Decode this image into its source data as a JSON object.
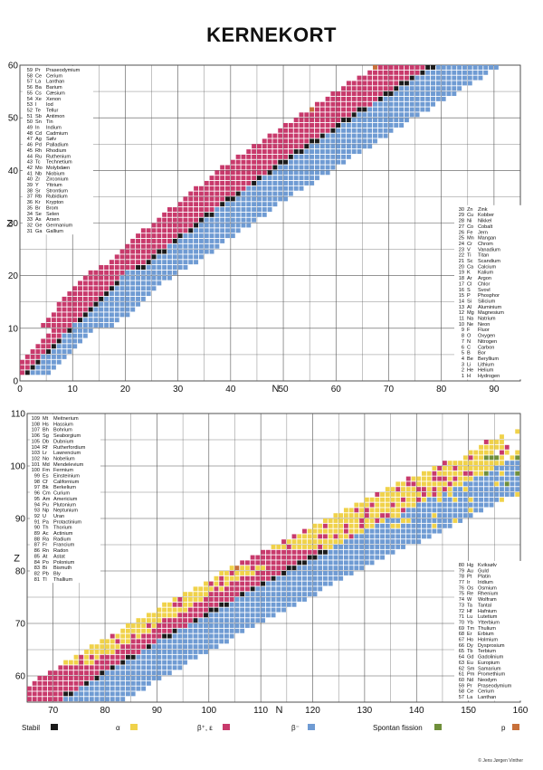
{
  "title": "KERNEKORT",
  "copyright": "© Jens Jørgen Vinther",
  "colors": {
    "stable": "#1a1a1a",
    "alpha": "#f0d24a",
    "beta_plus": "#c83a6c",
    "beta_minus": "#6f9bd3",
    "fission": "#6f8f3a",
    "proton": "#c8703a",
    "grid": "#555555"
  },
  "legend": [
    {
      "key": "stable",
      "label": "Stabil"
    },
    {
      "key": "alpha",
      "label": "α"
    },
    {
      "key": "beta_plus",
      "label": "β⁺, ε"
    },
    {
      "key": "beta_minus",
      "label": "β⁻"
    },
    {
      "key": "fission",
      "label": "Spontan fission"
    },
    {
      "key": "proton",
      "label": "p"
    }
  ],
  "chart_data": [
    {
      "type": "heatmap",
      "title": "KERNEKORT",
      "xlabel": "N",
      "ylabel": "Z",
      "xlim": [
        0,
        95
      ],
      "ylim": [
        0,
        60
      ],
      "x_ticks": [
        0,
        10,
        20,
        30,
        40,
        50,
        60,
        70,
        80,
        90
      ],
      "y_ticks": [
        0,
        10,
        20,
        30,
        40,
        50,
        60
      ],
      "grid": true,
      "legend_placement": "bottom",
      "element_lists": [
        {
          "placement": "top-left",
          "items": [
            {
              "z": "59",
              "sym": "Pr",
              "name": "Praseodymium"
            },
            {
              "z": "58",
              "sym": "Ce",
              "name": "Cerium"
            },
            {
              "z": "57",
              "sym": "La",
              "name": "Lanthan"
            },
            {
              "z": "56",
              "sym": "Ba",
              "name": "Barium"
            },
            {
              "z": "55",
              "sym": "Cs",
              "name": "Cæsium"
            },
            {
              "z": "54",
              "sym": "Xe",
              "name": "Xenon"
            },
            {
              "z": "53",
              "sym": "I",
              "name": "Iod"
            },
            {
              "z": "52",
              "sym": "Te",
              "name": "Tellur"
            },
            {
              "z": "51",
              "sym": "Sb",
              "name": "Antimon"
            },
            {
              "z": "50",
              "sym": "Sn",
              "name": "Tin"
            },
            {
              "z": "49",
              "sym": "In",
              "name": "Indium"
            },
            {
              "z": "48",
              "sym": "Cd",
              "name": "Cadmium"
            },
            {
              "z": "47",
              "sym": "Ag",
              "name": "Sølv"
            },
            {
              "z": "46",
              "sym": "Pd",
              "name": "Palladium"
            },
            {
              "z": "45",
              "sym": "Rh",
              "name": "Rhodium"
            },
            {
              "z": "44",
              "sym": "Ru",
              "name": "Ruthenium"
            },
            {
              "z": "43",
              "sym": "Tc",
              "name": "Technetium"
            },
            {
              "z": "42",
              "sym": "Mo",
              "name": "Molybdæn"
            },
            {
              "z": "41",
              "sym": "Nb",
              "name": "Niobium"
            },
            {
              "z": "40",
              "sym": "Zr",
              "name": "Zirconium"
            },
            {
              "z": "39",
              "sym": "Y",
              "name": "Yttrium"
            },
            {
              "z": "38",
              "sym": "Sr",
              "name": "Strontium"
            },
            {
              "z": "37",
              "sym": "Rb",
              "name": "Rubidium"
            },
            {
              "z": "36",
              "sym": "Kr",
              "name": "Krypton"
            },
            {
              "z": "35",
              "sym": "Br",
              "name": "Brom"
            },
            {
              "z": "34",
              "sym": "Se",
              "name": "Selen"
            },
            {
              "z": "33",
              "sym": "As",
              "name": "Arsen"
            },
            {
              "z": "32",
              "sym": "Ge",
              "name": "Germanium"
            },
            {
              "z": "31",
              "sym": "Ga",
              "name": "Gallium"
            }
          ]
        },
        {
          "placement": "bottom-right",
          "items": [
            {
              "z": "30",
              "sym": "Zn",
              "name": "Zink"
            },
            {
              "z": "29",
              "sym": "Cu",
              "name": "Kobber"
            },
            {
              "z": "28",
              "sym": "Ni",
              "name": "Nikkel"
            },
            {
              "z": "27",
              "sym": "Co",
              "name": "Cobalt"
            },
            {
              "z": "26",
              "sym": "Fe",
              "name": "Jern"
            },
            {
              "z": "25",
              "sym": "Mn",
              "name": "Mangan"
            },
            {
              "z": "24",
              "sym": "Cr",
              "name": "Chrom"
            },
            {
              "z": "23",
              "sym": "V",
              "name": "Vanadium"
            },
            {
              "z": "22",
              "sym": "Ti",
              "name": "Titan"
            },
            {
              "z": "21",
              "sym": "Sc",
              "name": "Scandium"
            },
            {
              "z": "20",
              "sym": "Ca",
              "name": "Calcium"
            },
            {
              "z": "19",
              "sym": "K",
              "name": "Kalium"
            },
            {
              "z": "18",
              "sym": "Ar",
              "name": "Argon"
            },
            {
              "z": "17",
              "sym": "Cl",
              "name": "Chlor"
            },
            {
              "z": "16",
              "sym": "S",
              "name": "Svovl"
            },
            {
              "z": "15",
              "sym": "P",
              "name": "Phosphor"
            },
            {
              "z": "14",
              "sym": "Si",
              "name": "Silicium"
            },
            {
              "z": "13",
              "sym": "Al",
              "name": "Aluminium"
            },
            {
              "z": "12",
              "sym": "Mg",
              "name": "Magnesium"
            },
            {
              "z": "11",
              "sym": "Na",
              "name": "Natrium"
            },
            {
              "z": "10",
              "sym": "Ne",
              "name": "Neon"
            },
            {
              "z": "9",
              "sym": "F",
              "name": "Fluor"
            },
            {
              "z": "8",
              "sym": "O",
              "name": "Oxygen"
            },
            {
              "z": "7",
              "sym": "N",
              "name": "Nitrogen"
            },
            {
              "z": "6",
              "sym": "C",
              "name": "Carbon"
            },
            {
              "z": "5",
              "sym": "B",
              "name": "Bor"
            },
            {
              "z": "4",
              "sym": "Be",
              "name": "Beryllium"
            },
            {
              "z": "3",
              "sym": "Li",
              "name": "Lithium"
            },
            {
              "z": "2",
              "sym": "He",
              "name": "Helium"
            },
            {
              "z": "1",
              "sym": "H",
              "name": "Hydrogen"
            }
          ]
        }
      ]
    },
    {
      "type": "heatmap",
      "xlabel": "N",
      "ylabel": "Z",
      "xlim": [
        65,
        160
      ],
      "ylim": [
        55,
        110
      ],
      "x_ticks": [
        70,
        80,
        90,
        100,
        110,
        120,
        130,
        140,
        150,
        160
      ],
      "y_ticks": [
        60,
        70,
        80,
        90,
        100,
        110
      ],
      "grid": true,
      "legend_placement": "bottom",
      "element_lists": [
        {
          "placement": "top-left",
          "items": [
            {
              "z": "109",
              "sym": "Mt",
              "name": "Meitnerium"
            },
            {
              "z": "108",
              "sym": "Hs",
              "name": "Hassium"
            },
            {
              "z": "107",
              "sym": "Bh",
              "name": "Bohrium"
            },
            {
              "z": "106",
              "sym": "Sg",
              "name": "Seaborgium"
            },
            {
              "z": "105",
              "sym": "Db",
              "name": "Dubnium"
            },
            {
              "z": "104",
              "sym": "Rf",
              "name": "Rutherfordium"
            },
            {
              "z": "103",
              "sym": "Lr",
              "name": "Lawrencium"
            },
            {
              "z": "102",
              "sym": "No",
              "name": "Nobelium"
            },
            {
              "z": "101",
              "sym": "Md",
              "name": "Mendelevium"
            },
            {
              "z": "100",
              "sym": "Fm",
              "name": "Fermium"
            },
            {
              "z": "99",
              "sym": "Es",
              "name": "Einsteinium"
            },
            {
              "z": "98",
              "sym": "Cf",
              "name": "Californium"
            },
            {
              "z": "97",
              "sym": "Bk",
              "name": "Berkelium"
            },
            {
              "z": "96",
              "sym": "Cm",
              "name": "Curium"
            },
            {
              "z": "95",
              "sym": "Am",
              "name": "Americium"
            },
            {
              "z": "94",
              "sym": "Pu",
              "name": "Plutonium"
            },
            {
              "z": "93",
              "sym": "Np",
              "name": "Neptunium"
            },
            {
              "z": "92",
              "sym": "U",
              "name": "Uran"
            },
            {
              "z": "91",
              "sym": "Pa",
              "name": "Protactinium"
            },
            {
              "z": "90",
              "sym": "Th",
              "name": "Thorium"
            },
            {
              "z": "89",
              "sym": "Ac",
              "name": "Actinium"
            },
            {
              "z": "88",
              "sym": "Ra",
              "name": "Radium"
            },
            {
              "z": "87",
              "sym": "Fr",
              "name": "Francium"
            },
            {
              "z": "86",
              "sym": "Rn",
              "name": "Radon"
            },
            {
              "z": "85",
              "sym": "At",
              "name": "Astat"
            },
            {
              "z": "84",
              "sym": "Po",
              "name": "Polonium"
            },
            {
              "z": "83",
              "sym": "Bi",
              "name": "Bismuth"
            },
            {
              "z": "82",
              "sym": "Pb",
              "name": "Bly"
            },
            {
              "z": "81",
              "sym": "Tl",
              "name": "Thallium"
            }
          ]
        },
        {
          "placement": "bottom-right",
          "items": [
            {
              "z": "80",
              "sym": "Hg",
              "name": "Kviksølv"
            },
            {
              "z": "79",
              "sym": "Au",
              "name": "Guld"
            },
            {
              "z": "78",
              "sym": "Pt",
              "name": "Platin"
            },
            {
              "z": "77",
              "sym": "Ir",
              "name": "Iridium"
            },
            {
              "z": "76",
              "sym": "Os",
              "name": "Osmium"
            },
            {
              "z": "75",
              "sym": "Re",
              "name": "Rhenium"
            },
            {
              "z": "74",
              "sym": "W",
              "name": "Wolfram"
            },
            {
              "z": "73",
              "sym": "Ta",
              "name": "Tantal"
            },
            {
              "z": "72",
              "sym": "Hf",
              "name": "Hafnium"
            },
            {
              "z": "71",
              "sym": "Lu",
              "name": "Lutetium"
            },
            {
              "z": "70",
              "sym": "Yb",
              "name": "Ytterbium"
            },
            {
              "z": "69",
              "sym": "Tm",
              "name": "Thulium"
            },
            {
              "z": "68",
              "sym": "Er",
              "name": "Erbium"
            },
            {
              "z": "67",
              "sym": "Ho",
              "name": "Holmium"
            },
            {
              "z": "66",
              "sym": "Dy",
              "name": "Dysprosium"
            },
            {
              "z": "65",
              "sym": "Tb",
              "name": "Terbium"
            },
            {
              "z": "64",
              "sym": "Gd",
              "name": "Gadolinium"
            },
            {
              "z": "63",
              "sym": "Eu",
              "name": "Europium"
            },
            {
              "z": "62",
              "sym": "Sm",
              "name": "Samarium"
            },
            {
              "z": "61",
              "sym": "Pm",
              "name": "Promethium"
            },
            {
              "z": "60",
              "sym": "Nd",
              "name": "Neodym"
            },
            {
              "z": "59",
              "sym": "Pr",
              "name": "Praseodymium"
            },
            {
              "z": "58",
              "sym": "Ce",
              "name": "Cerium"
            },
            {
              "z": "57",
              "sym": "La",
              "name": "Lanthan"
            }
          ]
        }
      ]
    }
  ]
}
